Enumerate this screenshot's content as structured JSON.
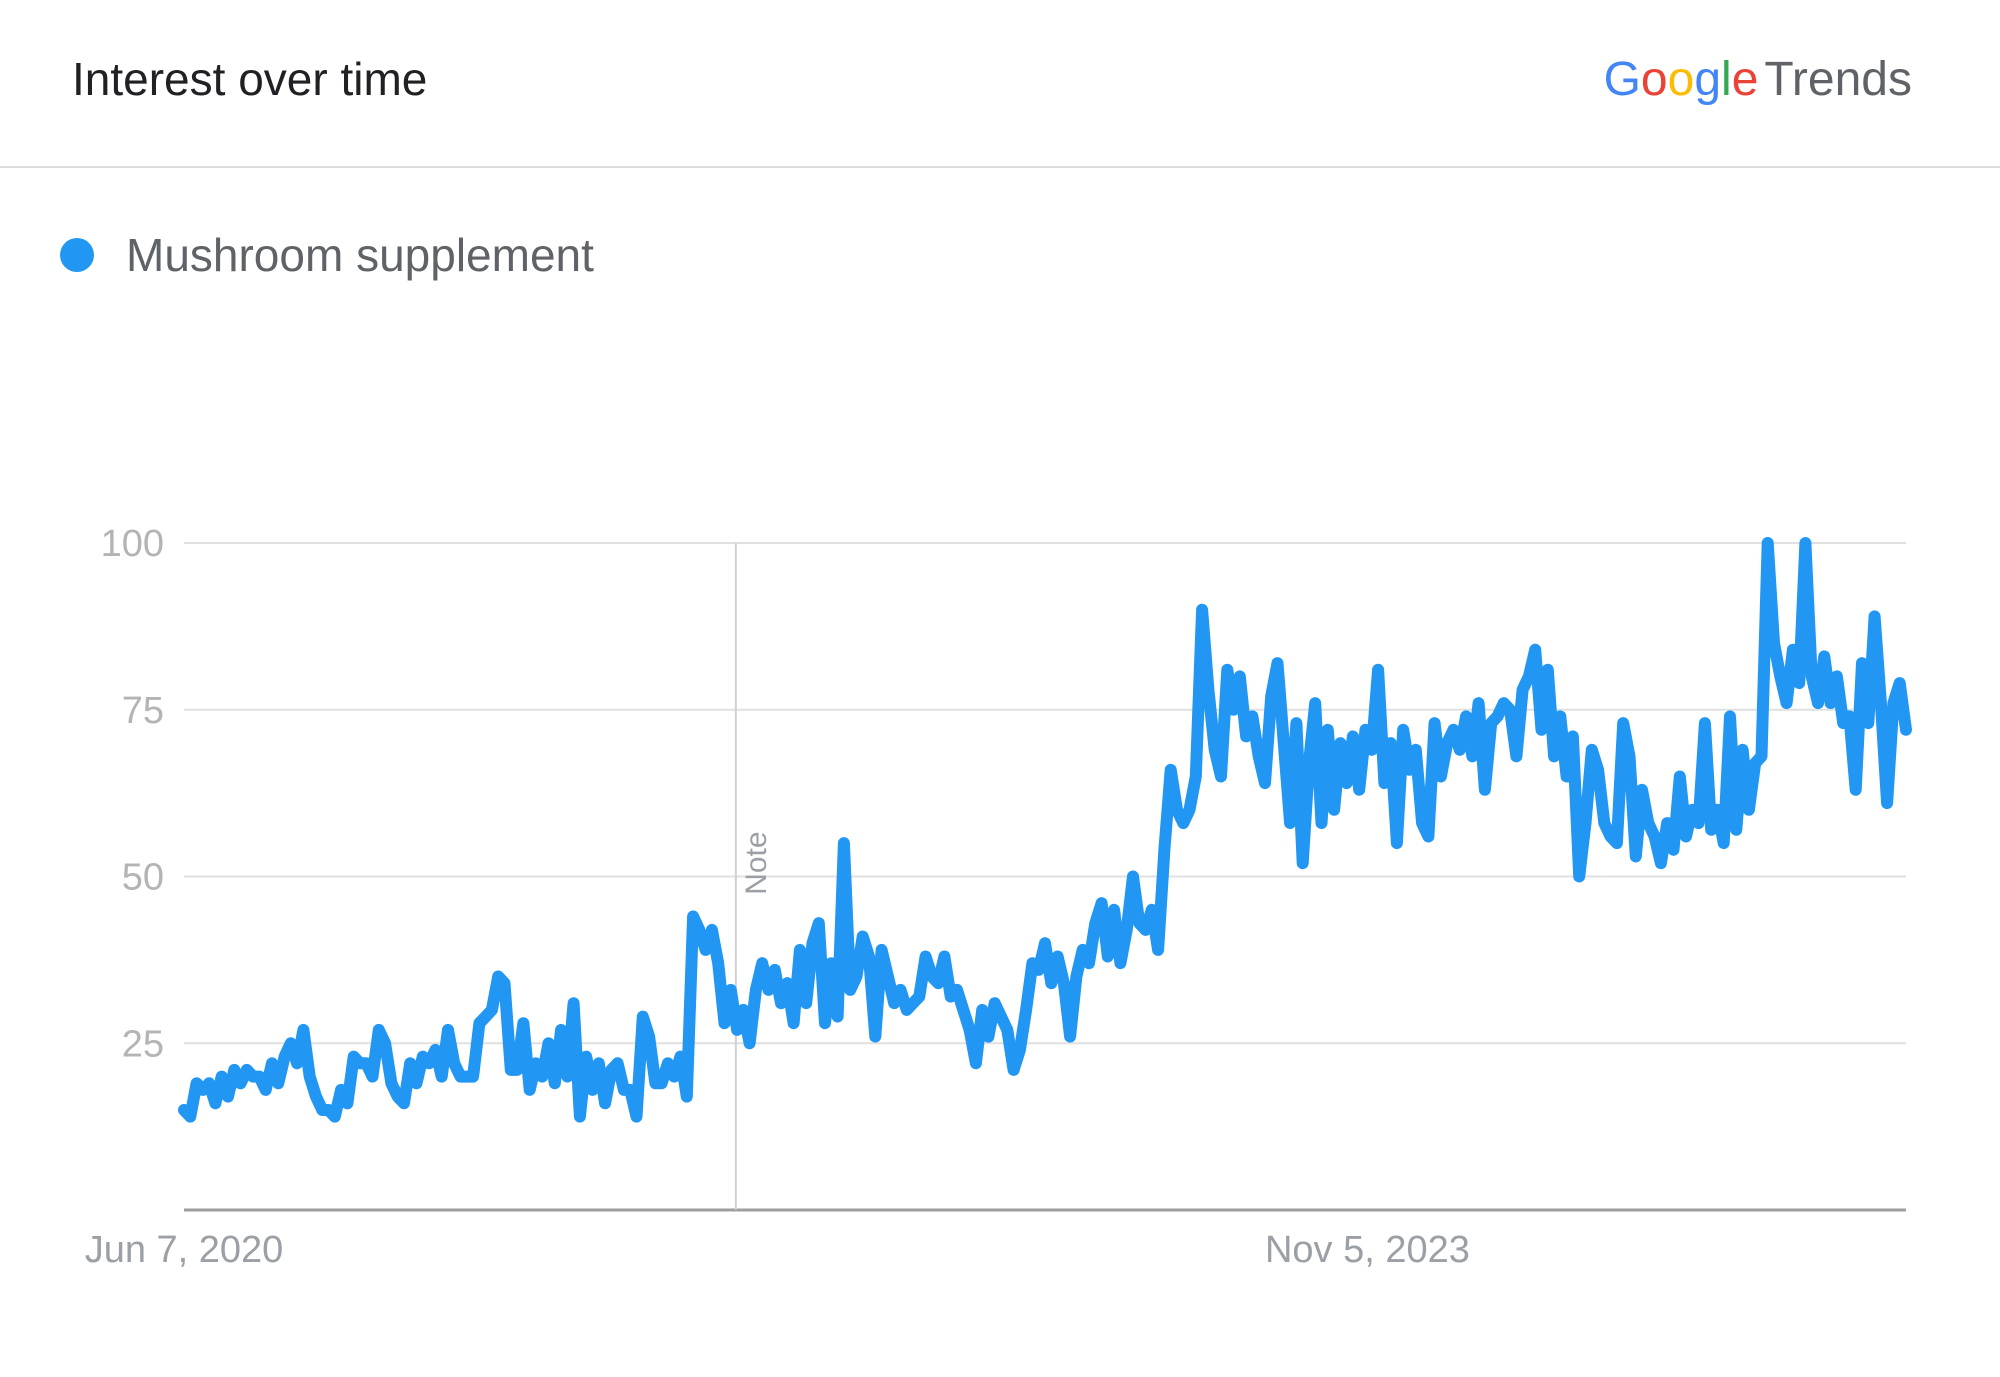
{
  "header": {
    "title": "Interest over time",
    "brand": {
      "google_letters": [
        "G",
        "o",
        "o",
        "g",
        "l",
        "e"
      ],
      "product": "Trends"
    }
  },
  "legend": {
    "label": "Mushroom supplement",
    "color": "#2196f3"
  },
  "chart_data": {
    "type": "line",
    "title": "Interest over time",
    "xlabel": "",
    "ylabel": "",
    "ylim": [
      0,
      100
    ],
    "yticks": [
      25,
      50,
      75,
      100
    ],
    "xtick_labels": [
      {
        "label": "Jun 7, 2020",
        "date": "2020-06-07"
      },
      {
        "label": "Nov 5, 2023",
        "date": "2023-11-05"
      }
    ],
    "annotation": {
      "label": "Note",
      "date": "2022-01-09",
      "style": "vertical-line"
    },
    "grid": true,
    "legend_position": "top-left",
    "x_start": "2020-06-07",
    "x_end": "2025-05-25",
    "series": [
      {
        "name": "Mushroom supplement",
        "color": "#2196f3",
        "values": [
          15,
          14,
          19,
          18,
          19,
          16,
          20,
          17,
          21,
          19,
          21,
          20,
          20,
          18,
          22,
          19,
          23,
          25,
          22,
          27,
          20,
          17,
          15,
          15,
          14,
          18,
          16,
          23,
          22,
          22,
          20,
          27,
          25,
          19,
          17,
          16,
          22,
          19,
          23,
          22,
          24,
          20,
          27,
          22,
          20,
          20,
          20,
          28,
          29,
          30,
          35,
          34,
          21,
          21,
          28,
          18,
          22,
          20,
          25,
          19,
          27,
          20,
          31,
          14,
          23,
          18,
          22,
          16,
          21,
          22,
          18,
          18,
          14,
          29,
          26,
          19,
          19,
          22,
          20,
          23,
          17,
          44,
          42,
          39,
          42,
          37,
          28,
          33,
          27,
          30,
          25,
          33,
          37,
          33,
          36,
          31,
          34,
          28,
          39,
          31,
          40,
          43,
          28,
          37,
          29,
          55,
          33,
          35,
          41,
          38,
          26,
          39,
          35,
          31,
          33,
          30,
          31,
          32,
          38,
          35,
          34,
          38,
          32,
          33,
          30,
          27,
          22,
          30,
          26,
          31,
          29,
          27,
          21,
          24,
          30,
          37,
          36,
          40,
          34,
          38,
          34,
          26,
          35,
          39,
          37,
          43,
          46,
          38,
          45,
          37,
          42,
          50,
          43,
          42,
          45,
          39,
          54,
          66,
          60,
          58,
          60,
          65,
          90,
          78,
          69,
          65,
          81,
          75,
          80,
          71,
          74,
          68,
          64,
          77,
          82,
          70,
          58,
          73,
          52,
          67,
          76,
          58,
          72,
          60,
          70,
          64,
          71,
          63,
          72,
          69,
          81,
          64,
          70,
          55,
          72,
          66,
          69,
          58,
          56,
          73,
          65,
          70,
          72,
          69,
          74,
          68,
          76,
          63,
          73,
          74,
          76,
          75,
          68,
          78,
          80,
          84,
          72,
          81,
          68,
          74,
          65,
          71,
          50,
          58,
          69,
          66,
          58,
          56,
          55,
          73,
          68,
          53,
          63,
          58,
          56,
          52,
          58,
          54,
          65,
          56,
          60,
          58,
          73,
          57,
          60,
          55,
          74,
          57,
          69,
          60,
          67,
          68,
          100,
          85,
          80,
          76,
          84,
          79,
          100,
          80,
          76,
          83,
          76,
          80,
          73,
          74,
          63,
          82,
          73,
          89,
          76,
          61,
          76,
          79,
          72
        ]
      }
    ]
  }
}
